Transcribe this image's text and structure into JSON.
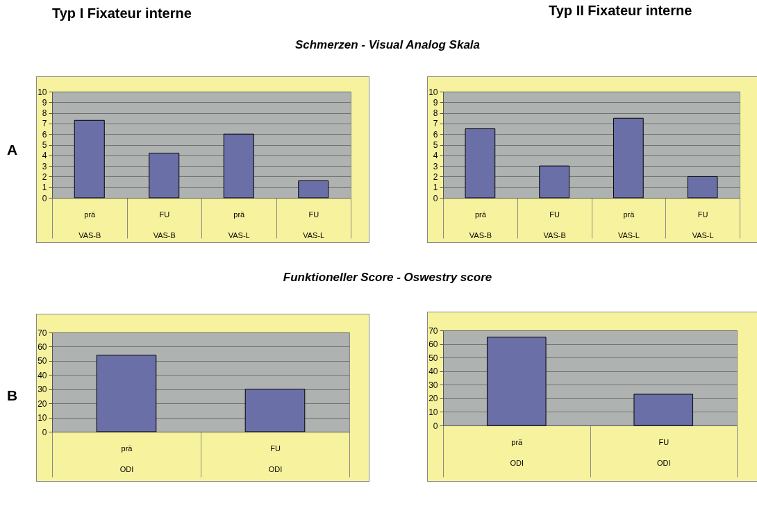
{
  "chart_data": [
    {
      "type": "bar",
      "title": "Typ I Fixateur interne",
      "subtitle": "Schmerzen - Visual Analog Skala",
      "annotations": [
        "A"
      ],
      "categories": [
        "prä\nVAS-B",
        "FU\nVAS-B",
        "prä\nVAS-L",
        "FU\nVAS-L"
      ],
      "values": [
        7.3,
        4.2,
        6.0,
        1.6
      ],
      "color": "#6b6fa8",
      "ylim": [
        0,
        10
      ],
      "yticks": [
        0,
        1,
        2,
        3,
        4,
        5,
        6,
        7,
        8,
        9,
        10
      ],
      "grid": "y"
    },
    {
      "type": "bar",
      "title": "Typ II Fixateur interne",
      "categories": [
        "prä\nVAS-B",
        "FU\nVAS-B",
        "prä\nVAS-L",
        "FU\nVAS-L"
      ],
      "values": [
        6.5,
        3.0,
        7.5,
        2.0
      ],
      "color": "#6b6fa8",
      "ylim": [
        0,
        10
      ],
      "yticks": [
        0,
        1,
        2,
        3,
        4,
        5,
        6,
        7,
        8,
        9,
        10
      ],
      "grid": "y"
    },
    {
      "type": "bar",
      "subtitle": "Funktioneller Score - Oswestry score",
      "annotations": [
        "B"
      ],
      "categories": [
        "prä\nODI",
        "FU\nODI"
      ],
      "values": [
        54,
        30
      ],
      "color": "#6b6fa8",
      "ylim": [
        0,
        70
      ],
      "yticks": [
        0,
        10,
        20,
        30,
        40,
        50,
        60,
        70
      ],
      "grid": "y"
    },
    {
      "type": "bar",
      "categories": [
        "prä\nODI",
        "FU\nODI"
      ],
      "values": [
        65,
        23
      ],
      "color": "#6b6fa8",
      "ylim": [
        0,
        70
      ],
      "yticks": [
        0,
        10,
        20,
        30,
        40,
        50,
        60,
        70
      ],
      "grid": "y"
    }
  ]
}
